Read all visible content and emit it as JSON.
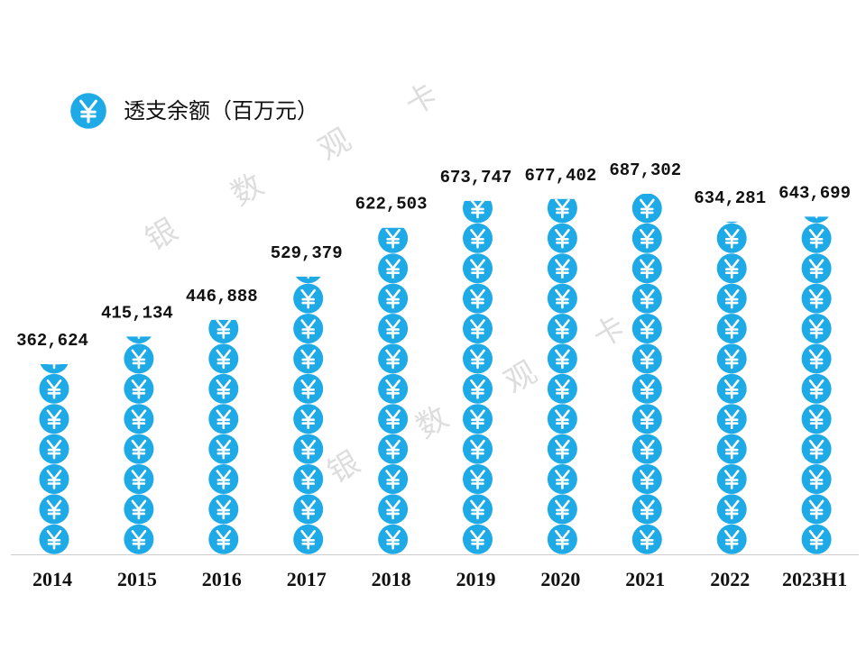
{
  "chart_data": {
    "type": "pictograph",
    "legend": "透支余额（百万元）",
    "color": "#1eaae7",
    "categories": [
      "2014",
      "2015",
      "2016",
      "2017",
      "2018",
      "2019",
      "2020",
      "2021",
      "2022",
      "2023H1"
    ],
    "values": [
      362624,
      415134,
      446888,
      529379,
      622503,
      673747,
      677402,
      687302,
      634281,
      643699
    ],
    "value_labels": [
      "362,624",
      "415,134",
      "446,888",
      "529,379",
      "622,503",
      "673,747",
      "677,402",
      "687,302",
      "634,281",
      "643,699"
    ],
    "watermark": [
      "银",
      "数",
      "观",
      "卡"
    ]
  }
}
